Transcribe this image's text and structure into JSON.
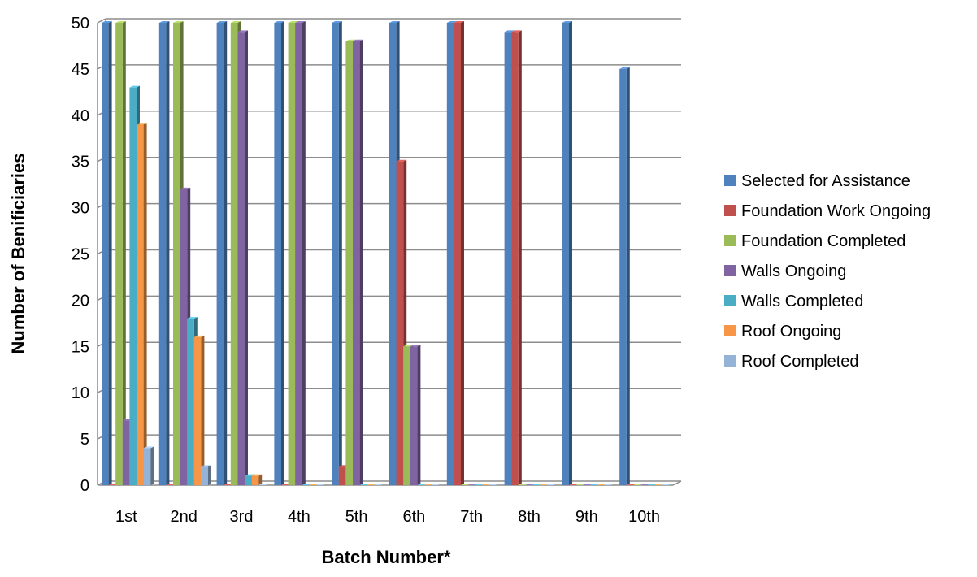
{
  "chart_data": {
    "type": "bar",
    "title": "",
    "xlabel": "Batch Number*",
    "ylabel": "Number of Benificiaries",
    "ylim": [
      0,
      50
    ],
    "yticks": [
      0,
      5,
      10,
      15,
      20,
      25,
      30,
      35,
      40,
      45,
      50
    ],
    "grid": true,
    "legend_position": "right",
    "categories": [
      "1st",
      "2nd",
      "3rd",
      "4th",
      "5th",
      "6th",
      "7th",
      "8th",
      "9th",
      "10th"
    ],
    "series": [
      {
        "name": "Selected for Assistance",
        "color": "#4F81BD",
        "values": [
          50,
          50,
          50,
          50,
          50,
          50,
          50,
          49,
          50,
          45
        ]
      },
      {
        "name": "Foundation Work Ongoing",
        "color": "#C0504D",
        "values": [
          0,
          0,
          0,
          0,
          2,
          35,
          50,
          49,
          0,
          0
        ]
      },
      {
        "name": "Foundation Completed",
        "color": "#9BBB59",
        "values": [
          50,
          50,
          50,
          50,
          48,
          15,
          0,
          0,
          0,
          0
        ]
      },
      {
        "name": "Walls Ongoing",
        "color": "#8064A2",
        "values": [
          7,
          32,
          49,
          50,
          48,
          15,
          0,
          0,
          0,
          0
        ]
      },
      {
        "name": "Walls Completed",
        "color": "#4BACC6",
        "values": [
          43,
          18,
          1,
          0,
          0,
          0,
          0,
          0,
          0,
          0
        ]
      },
      {
        "name": "Roof Ongoing",
        "color": "#F79646",
        "values": [
          39,
          16,
          1,
          0,
          0,
          0,
          0,
          0,
          0,
          0
        ]
      },
      {
        "name": "Roof Completed",
        "color": "#95B3D7",
        "values": [
          4,
          2,
          0,
          0,
          0,
          0,
          0,
          0,
          0,
          0
        ]
      }
    ]
  }
}
